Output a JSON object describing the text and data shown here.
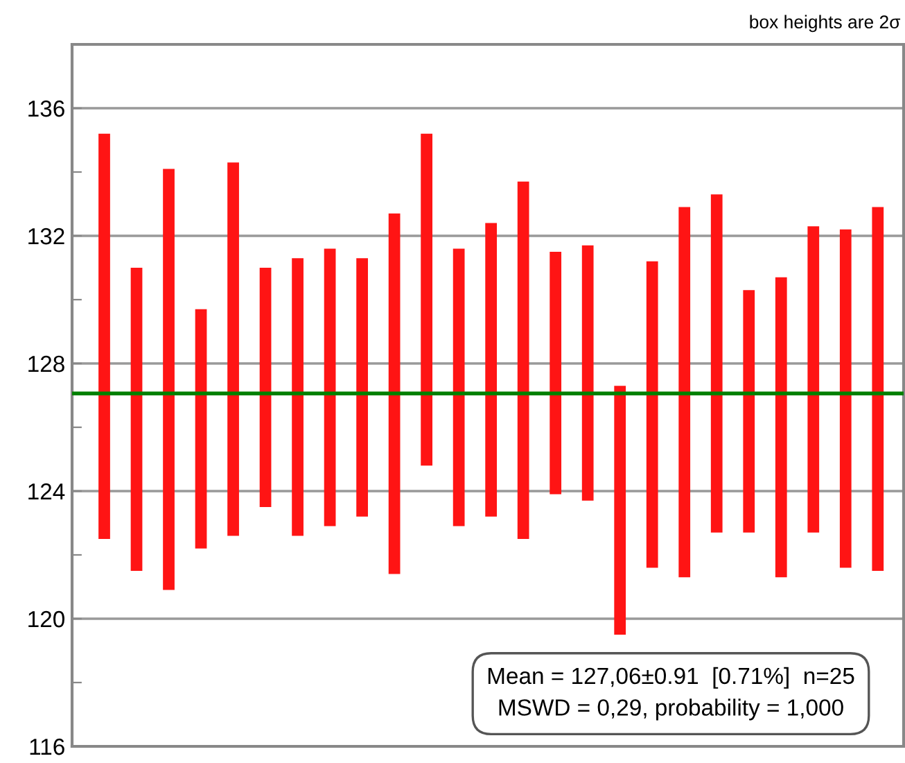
{
  "chart_data": {
    "type": "bar",
    "categories": [
      null,
      null,
      null,
      null,
      null,
      null,
      null,
      null,
      null,
      null,
      null,
      null,
      null,
      null,
      null,
      null,
      null,
      null,
      null,
      null,
      null,
      null,
      null,
      null,
      null
    ],
    "base": [
      122.5,
      121.5,
      120.9,
      122.2,
      122.6,
      123.5,
      122.6,
      122.9,
      123.2,
      121.4,
      124.8,
      122.9,
      123.2,
      122.5,
      123.9,
      123.7,
      119.5,
      121.6,
      121.3,
      122.7,
      122.7,
      121.3,
      122.7,
      121.6,
      121.5
    ],
    "values": [
      12.7,
      9.5,
      13.2,
      7.5,
      11.7,
      7.5,
      8.7,
      8.7,
      8.1,
      11.3,
      10.4,
      8.7,
      9.2,
      11.2,
      7.6,
      8.0,
      7.8,
      9.6,
      11.6,
      10.6,
      7.6,
      9.4,
      9.6,
      10.6,
      11.4
    ],
    "color": "#ff1414",
    "ylim": [
      116,
      138
    ],
    "yticks": [
      116,
      {
        "value": 118,
        "label": null
      },
      120,
      {
        "value": 122,
        "label": null
      },
      124,
      {
        "value": 126,
        "label": null
      },
      128,
      {
        "value": 130,
        "label": null
      },
      132,
      {
        "value": 134,
        "label": null
      },
      136
    ],
    "grid": "y",
    "ref_lines": [
      {
        "axis": "y",
        "value": 127.06,
        "label": null,
        "color": "#008000"
      }
    ],
    "annotations": [
      "box heights are 2σ",
      "Mean = 127,06±0.91  [0.71%]  n=25",
      "MSWD = 0,29, probability = 1,000"
    ]
  }
}
